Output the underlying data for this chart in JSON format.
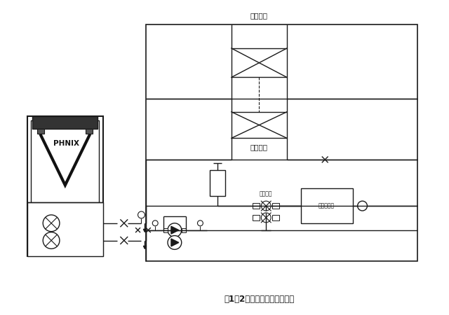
{
  "title": "图1－2闭式膨胀定压罐的安装",
  "bg_color": "#ffffff",
  "line_color": "#1a1a1a",
  "text_color": "#1a1a1a",
  "top_label": "末端风盘",
  "mid_label": "末端风盘",
  "phnix_label": "PHNIX",
  "label1": "控制器组",
  "label2": "配电控制柜"
}
